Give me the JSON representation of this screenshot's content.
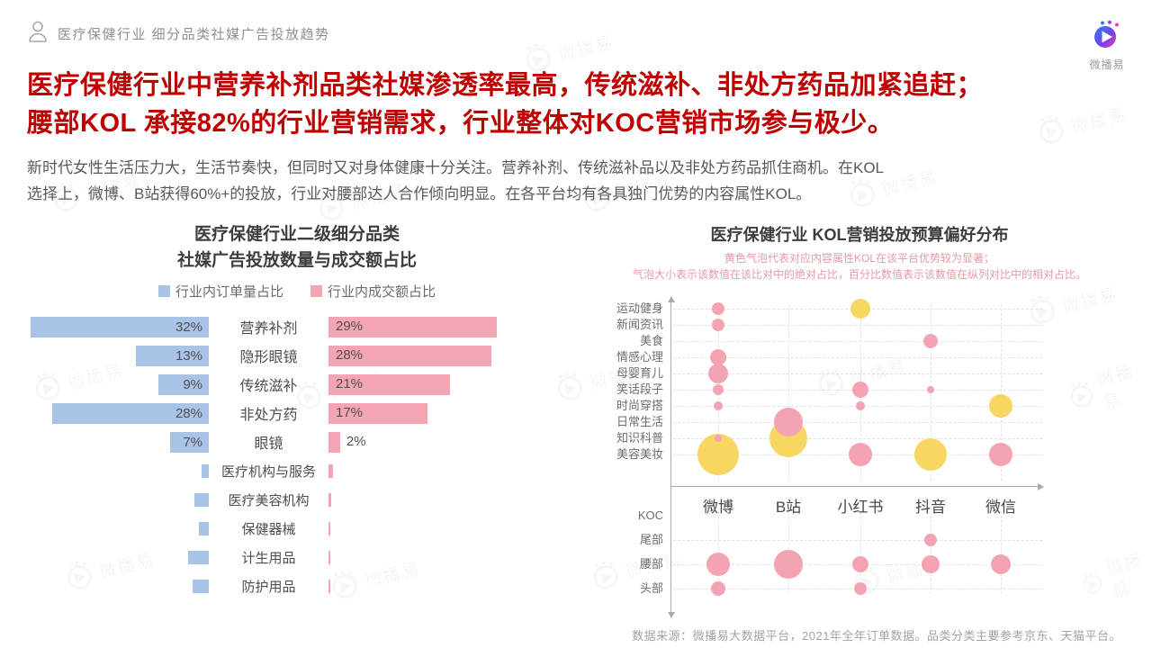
{
  "header": {
    "breadcrumb": "医疗保健行业 细分品类社媒广告投放趋势",
    "logo_text": "微播易"
  },
  "headline": {
    "line1": "医疗保健行业中营养补剂品类社媒渗透率最高，传统滋补、非处方药品加紧追赶；",
    "line2": "腰部KOL 承接82%的行业营销需求，行业整体对KOC营销市场参与极少。",
    "color": "#be0000"
  },
  "intro": {
    "line1": "新时代女性生活压力大，生活节奏快，但同时又对身体健康十分关注。营养补剂、传统滋补品以及非处方药品抓住商机。在KOL",
    "line2": "选择上，微博、B站获得60%+的投放，行业对腰部达人合作倾向明显。在各平台均有各具独门优势的内容属性KOL。"
  },
  "chart_data": [
    {
      "type": "bar",
      "title_line1": "医疗保健行业二级细分品类",
      "title_line2": "社媒广告投放数量与成交额占比",
      "orientation": "horizontal-diverging",
      "legend": [
        {
          "label": "行业内订单量占比",
          "color": "#a9c3e6"
        },
        {
          "label": "行业内成交额占比",
          "color": "#f3a5b3"
        }
      ],
      "categories": [
        "营养补剂",
        "隐形眼镜",
        "传统滋补",
        "非处方药",
        "眼镜",
        "医疗机构与服务",
        "医疗美容机构",
        "保健器械",
        "计生用品",
        "防护用品"
      ],
      "series": [
        {
          "name": "行业内订单量占比",
          "side": "left",
          "color": "#a9c3e6",
          "values": [
            32,
            13,
            9,
            28,
            7,
            1.3,
            2.6,
            1.8,
            3.7,
            2.9
          ],
          "labels": [
            "32%",
            "13%",
            "9%",
            "28%",
            "7%",
            "",
            "",
            "",
            "",
            ""
          ]
        },
        {
          "name": "行业内成交额占比",
          "side": "right",
          "color": "#f3a5b3",
          "values": [
            29,
            28,
            21,
            17,
            2,
            0.7,
            0.5,
            0.3,
            0.2,
            0.3
          ],
          "labels": [
            "29%",
            "28%",
            "21%",
            "17%",
            "2%",
            "",
            "",
            "",
            "",
            ""
          ]
        }
      ]
    },
    {
      "type": "scatter",
      "subtype": "bubble",
      "title": "医疗保健行业 KOL营销投放预算偏好分布",
      "subtitle_line1": "黄色气泡代表对应内容属性KOL在该平台优势较为显著；",
      "subtitle_line2": "气泡大小表示该数值在该比对中的绝对占比，百分比数值表示该数值在纵列对比中的相对占比。",
      "x_categories": [
        "微博",
        "B站",
        "小红书",
        "抖音",
        "微信"
      ],
      "y_categories_upper": [
        "运动健身",
        "新闻资讯",
        "美食",
        "情感心理",
        "母婴育儿",
        "笑话段子",
        "时尚穿搭",
        "日常生活",
        "知识科普",
        "美容美妆"
      ],
      "y_categories_lower": [
        "KOC",
        "尾部",
        "腰部",
        "头部"
      ],
      "colors": {
        "pink": "#f3a3b1",
        "yellow": "#f8d662"
      },
      "bubbles": [
        {
          "platform": "微博",
          "category": "运动健身",
          "color": "pink",
          "r": 7
        },
        {
          "platform": "微博",
          "category": "新闻资讯",
          "color": "pink",
          "r": 7
        },
        {
          "platform": "微博",
          "category": "情感心理",
          "color": "pink",
          "r": 9
        },
        {
          "platform": "微博",
          "category": "母婴育儿",
          "color": "pink",
          "r": 11
        },
        {
          "platform": "微博",
          "category": "笑话段子",
          "color": "pink",
          "r": 6
        },
        {
          "platform": "微博",
          "category": "时尚穿搭",
          "color": "pink",
          "r": 5
        },
        {
          "platform": "微博",
          "category": "美容美妆",
          "color": "yellow",
          "r": 23
        },
        {
          "platform": "微博",
          "category": "知识科普",
          "color": "pink",
          "r": 4
        },
        {
          "platform": "B站",
          "category": "知识科普",
          "color": "yellow",
          "r": 21
        },
        {
          "platform": "B站",
          "category": "日常生活",
          "color": "pink",
          "r": 16
        },
        {
          "platform": "小红书",
          "category": "运动健身",
          "color": "yellow",
          "r": 11
        },
        {
          "platform": "小红书",
          "category": "笑话段子",
          "color": "pink",
          "r": 9
        },
        {
          "platform": "小红书",
          "category": "时尚穿搭",
          "color": "pink",
          "r": 5
        },
        {
          "platform": "小红书",
          "category": "美容美妆",
          "color": "pink",
          "r": 13
        },
        {
          "platform": "抖音",
          "category": "美食",
          "color": "pink",
          "r": 8
        },
        {
          "platform": "抖音",
          "category": "笑话段子",
          "color": "pink",
          "r": 4
        },
        {
          "platform": "抖音",
          "category": "美容美妆",
          "color": "yellow",
          "r": 18
        },
        {
          "platform": "微信",
          "category": "时尚穿搭",
          "color": "yellow",
          "r": 13
        },
        {
          "platform": "微信",
          "category": "美容美妆",
          "color": "pink",
          "r": 13
        }
      ],
      "tier_bubbles": [
        {
          "platform": "微博",
          "tier": "腰部",
          "color": "pink",
          "r": 13
        },
        {
          "platform": "微博",
          "tier": "头部",
          "color": "pink",
          "r": 8
        },
        {
          "platform": "B站",
          "tier": "腰部",
          "color": "pink",
          "r": 16
        },
        {
          "platform": "小红书",
          "tier": "腰部",
          "color": "pink",
          "r": 9
        },
        {
          "platform": "小红书",
          "tier": "头部",
          "color": "pink",
          "r": 7
        },
        {
          "platform": "抖音",
          "tier": "尾部",
          "color": "pink",
          "r": 7
        },
        {
          "platform": "抖音",
          "tier": "腰部",
          "color": "pink",
          "r": 10
        },
        {
          "platform": "微信",
          "tier": "腰部",
          "color": "pink",
          "r": 11
        }
      ]
    }
  ],
  "footer": {
    "source": "数据来源：微播易大数据平台，2021年全年订单数据。品类分类主要参考京东、天猫平台。"
  }
}
